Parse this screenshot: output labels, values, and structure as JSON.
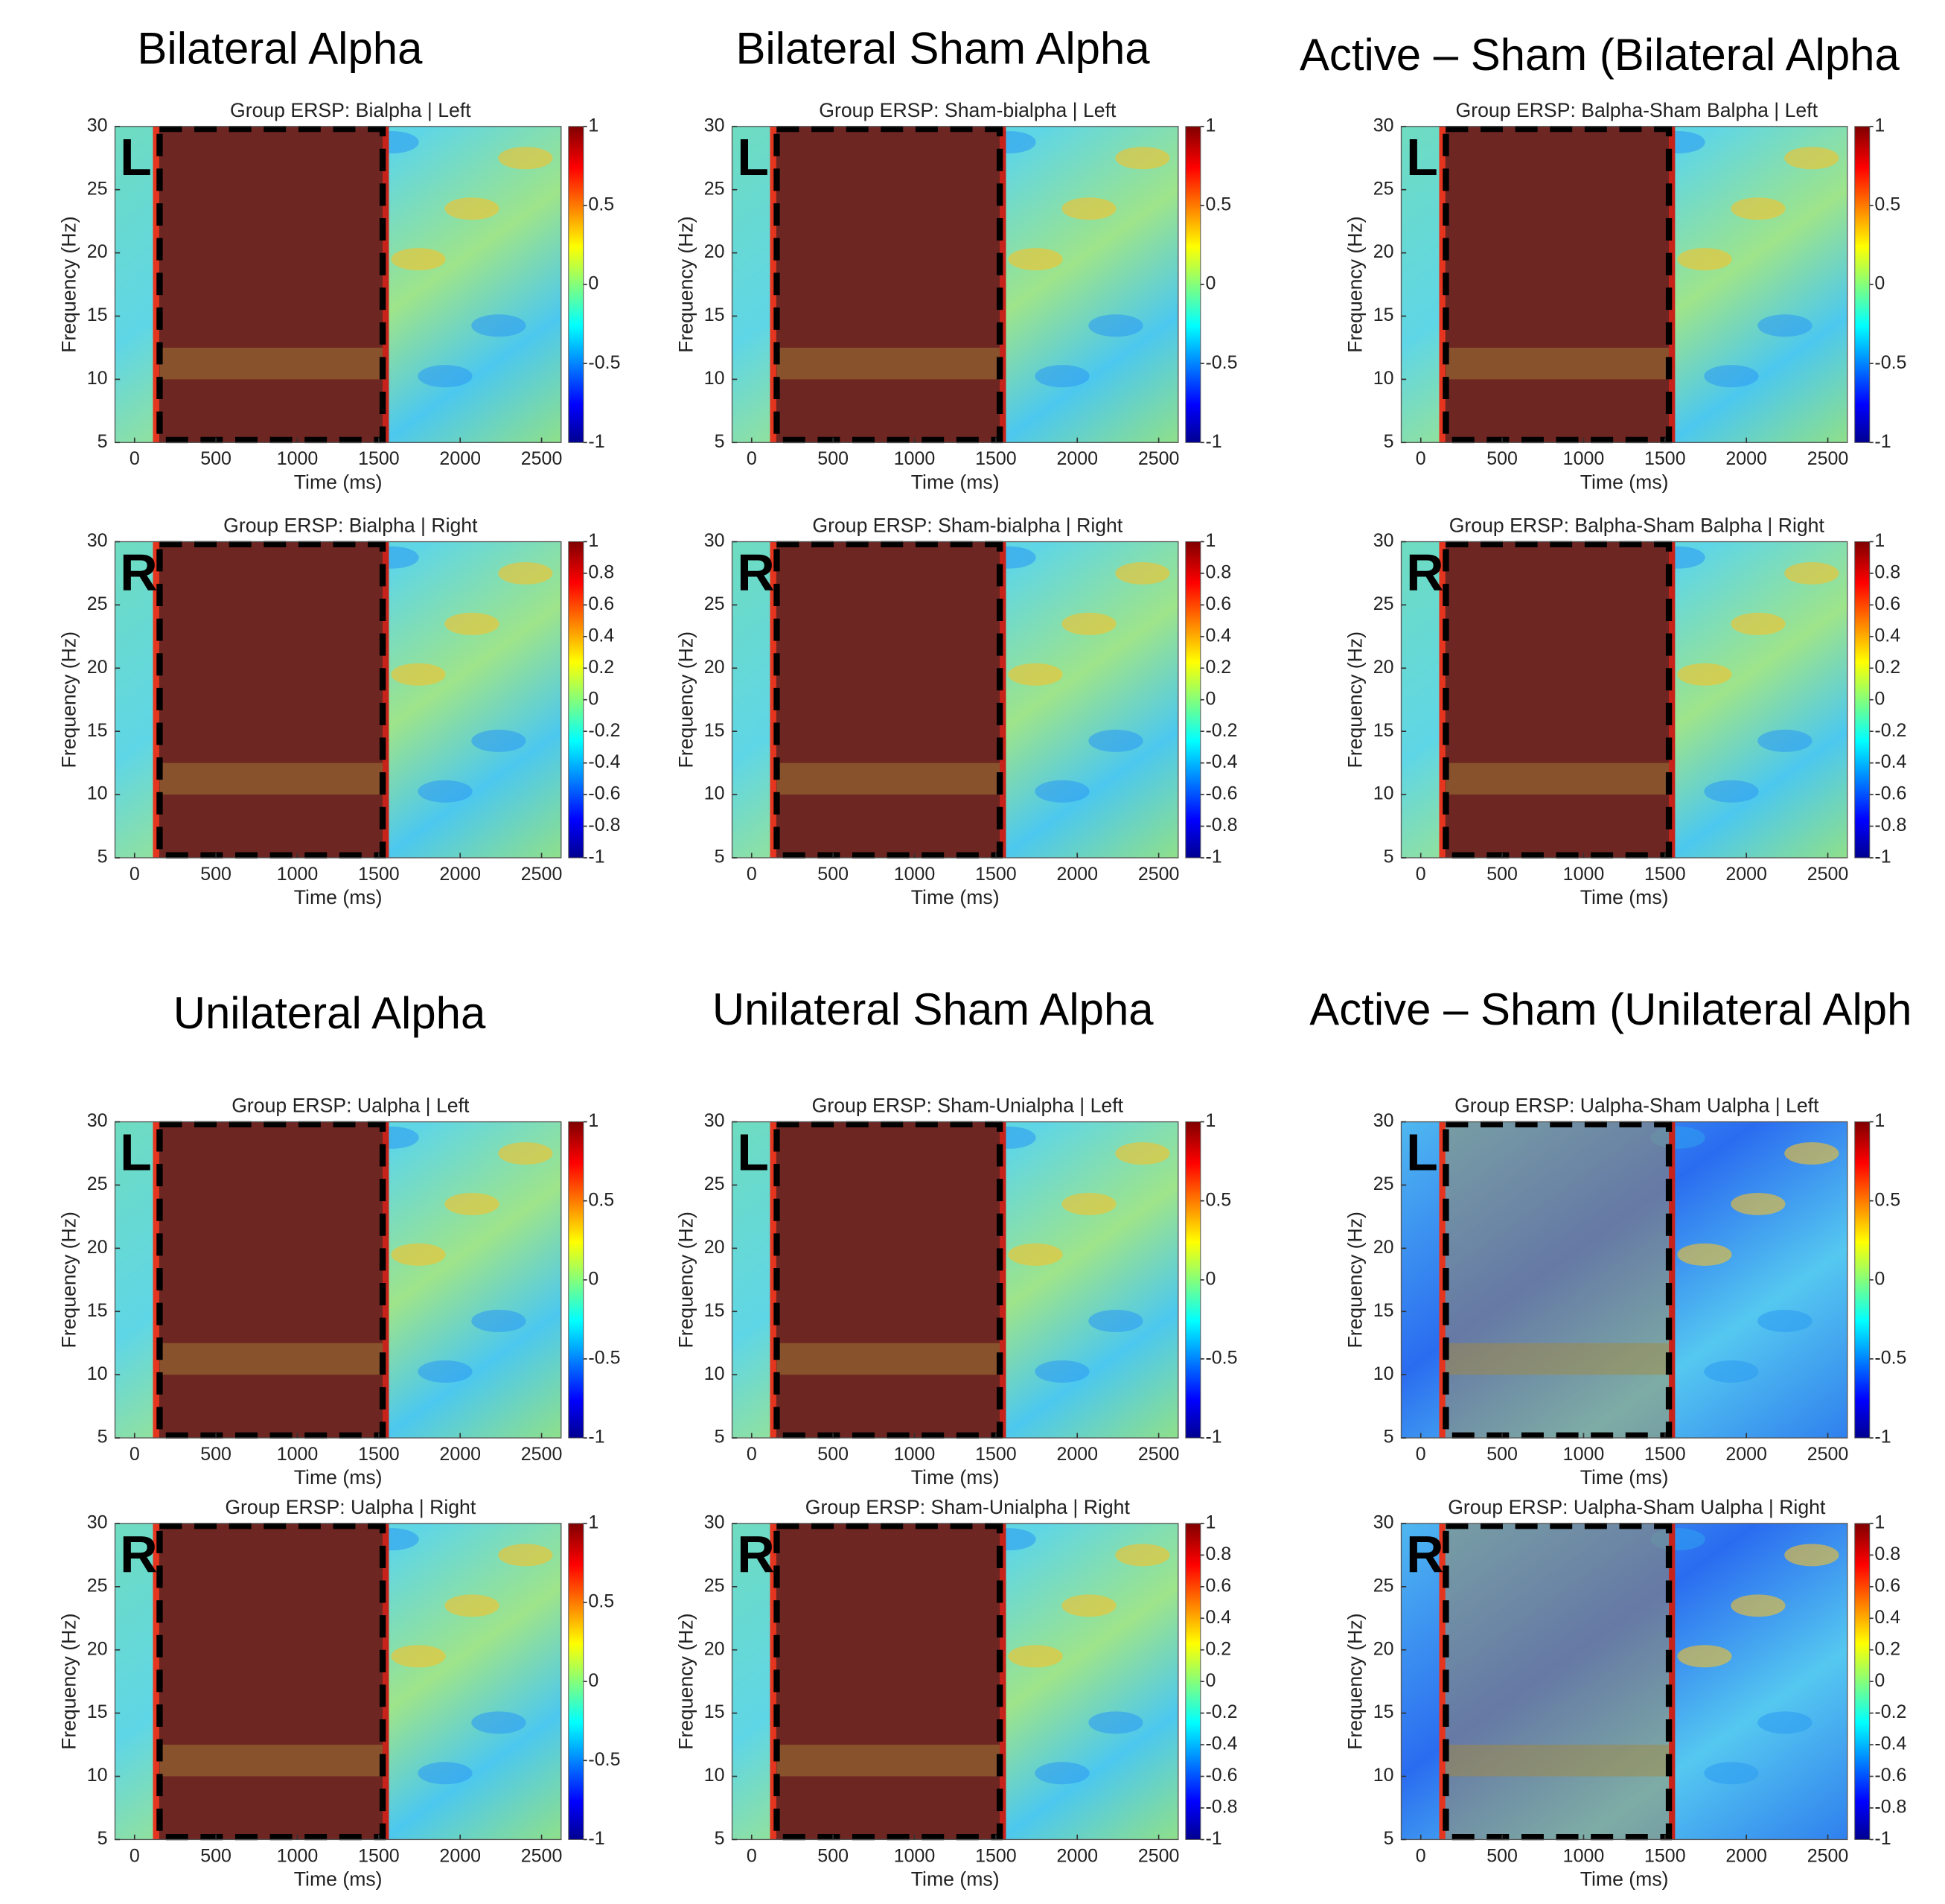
{
  "headings": [
    "Bilateral Alpha",
    "Bilateral Sham Alpha",
    "Active – Sham (Bilateral Alpha",
    "Unilateral Alpha",
    "Unilateral Sham Alpha",
    "Active – Sham (Unilateral Alph"
  ],
  "chart_data": [
    {
      "type": "heatmap",
      "title": "Group ERSP: Bialpha | Left",
      "panel_label": "L",
      "xlabel": "Time (ms)",
      "ylabel": "Frequency (Hz)",
      "xlim": [
        -120,
        2620
      ],
      "ylim": [
        5,
        30
      ],
      "xticks": [
        0,
        500,
        1000,
        1500,
        2000,
        2500
      ],
      "yticks": [
        5,
        10,
        15,
        20,
        25,
        30
      ],
      "clim": [
        -1,
        1
      ],
      "cticks": [
        -1,
        -0.5,
        0,
        0.5,
        1
      ]
    },
    {
      "type": "heatmap",
      "title": "Group ERSP: Bialpha | Right",
      "panel_label": "R",
      "xlabel": "Time (ms)",
      "ylabel": "Frequency (Hz)",
      "xlim": [
        -120,
        2620
      ],
      "ylim": [
        5,
        30
      ],
      "xticks": [
        0,
        500,
        1000,
        1500,
        2000,
        2500
      ],
      "yticks": [
        5,
        10,
        15,
        20,
        25,
        30
      ],
      "clim": [
        -1,
        1
      ],
      "cticks": [
        -1,
        -0.8,
        -0.6,
        -0.4,
        -0.2,
        0,
        0.2,
        0.4,
        0.6,
        0.8,
        1
      ]
    },
    {
      "type": "heatmap",
      "title": "Group ERSP: Sham-bialpha | Left",
      "panel_label": "L",
      "xlabel": "Time (ms)",
      "ylabel": "Frequency (Hz)",
      "xlim": [
        -120,
        2620
      ],
      "ylim": [
        5,
        30
      ],
      "xticks": [
        0,
        500,
        1000,
        1500,
        2000,
        2500
      ],
      "yticks": [
        5,
        10,
        15,
        20,
        25,
        30
      ],
      "clim": [
        -1,
        1
      ],
      "cticks": [
        -1,
        -0.5,
        0,
        0.5,
        1
      ]
    },
    {
      "type": "heatmap",
      "title": "Group ERSP: Sham-bialpha | Right",
      "panel_label": "R",
      "xlabel": "Time (ms)",
      "ylabel": "Frequency (Hz)",
      "xlim": [
        -120,
        2620
      ],
      "ylim": [
        5,
        30
      ],
      "xticks": [
        0,
        500,
        1000,
        1500,
        2000,
        2500
      ],
      "yticks": [
        5,
        10,
        15,
        20,
        25,
        30
      ],
      "clim": [
        -1,
        1
      ],
      "cticks": [
        -1,
        -0.8,
        -0.6,
        -0.4,
        -0.2,
        0,
        0.2,
        0.4,
        0.6,
        0.8,
        1
      ]
    },
    {
      "type": "heatmap",
      "title": "Group ERSP: Balpha-Sham Balpha | Left",
      "panel_label": "L",
      "xlabel": "Time (ms)",
      "ylabel": "Frequency (Hz)",
      "xlim": [
        -120,
        2620
      ],
      "ylim": [
        5,
        30
      ],
      "xticks": [
        0,
        500,
        1000,
        1500,
        2000,
        2500
      ],
      "yticks": [
        5,
        10,
        15,
        20,
        25,
        30
      ],
      "clim": [
        -1,
        1
      ],
      "cticks": [
        -1,
        -0.5,
        0,
        0.5,
        1
      ]
    },
    {
      "type": "heatmap",
      "title": "Group ERSP: Balpha-Sham Balpha | Right",
      "panel_label": "R",
      "xlabel": "Time (ms)",
      "ylabel": "Frequency (Hz)",
      "xlim": [
        -120,
        2620
      ],
      "ylim": [
        5,
        30
      ],
      "xticks": [
        0,
        500,
        1000,
        1500,
        2000,
        2500
      ],
      "yticks": [
        5,
        10,
        15,
        20,
        25,
        30
      ],
      "clim": [
        -1,
        1
      ],
      "cticks": [
        -1,
        -0.8,
        -0.6,
        -0.4,
        -0.2,
        0,
        0.2,
        0.4,
        0.6,
        0.8,
        1
      ]
    },
    {
      "type": "heatmap",
      "title": "Group ERSP: Ualpha | Left",
      "panel_label": "L",
      "xlabel": "Time (ms)",
      "ylabel": "Frequency (Hz)",
      "xlim": [
        -120,
        2620
      ],
      "ylim": [
        5,
        30
      ],
      "xticks": [
        0,
        500,
        1000,
        1500,
        2000,
        2500
      ],
      "yticks": [
        5,
        10,
        15,
        20,
        25,
        30
      ],
      "clim": [
        -1,
        1
      ],
      "cticks": [
        -1,
        -0.5,
        0,
        0.5,
        1
      ]
    },
    {
      "type": "heatmap",
      "title": "Group ERSP: Ualpha | Right",
      "panel_label": "R",
      "xlabel": "Time (ms)",
      "ylabel": "Frequency (Hz)",
      "xlim": [
        -120,
        2620
      ],
      "ylim": [
        5,
        30
      ],
      "xticks": [
        0,
        500,
        1000,
        1500,
        2000,
        2500
      ],
      "yticks": [
        5,
        10,
        15,
        20,
        25,
        30
      ],
      "clim": [
        -1,
        1
      ],
      "cticks": [
        -1,
        -0.5,
        0,
        0.5,
        1
      ]
    },
    {
      "type": "heatmap",
      "title": "Group ERSP: Sham-Unialpha | Left",
      "panel_label": "L",
      "xlabel": "Time (ms)",
      "ylabel": "Frequency (Hz)",
      "xlim": [
        -120,
        2620
      ],
      "ylim": [
        5,
        30
      ],
      "xticks": [
        0,
        500,
        1000,
        1500,
        2000,
        2500
      ],
      "yticks": [
        5,
        10,
        15,
        20,
        25,
        30
      ],
      "clim": [
        -1,
        1
      ],
      "cticks": [
        -1,
        -0.5,
        0,
        0.5,
        1
      ]
    },
    {
      "type": "heatmap",
      "title": "Group ERSP: Sham-Unialpha | Right",
      "panel_label": "R",
      "xlabel": "Time (ms)",
      "ylabel": "Frequency (Hz)",
      "xlim": [
        -120,
        2620
      ],
      "ylim": [
        5,
        30
      ],
      "xticks": [
        0,
        500,
        1000,
        1500,
        2000,
        2500
      ],
      "yticks": [
        5,
        10,
        15,
        20,
        25,
        30
      ],
      "clim": [
        -1,
        1
      ],
      "cticks": [
        -1,
        -0.8,
        -0.6,
        -0.4,
        -0.2,
        0,
        0.2,
        0.4,
        0.6,
        0.8,
        1
      ]
    },
    {
      "type": "heatmap",
      "title": "Group ERSP: Ualpha-Sham Ualpha | Left",
      "panel_label": "L",
      "xlabel": "Time (ms)",
      "ylabel": "Frequency (Hz)",
      "xlim": [
        -120,
        2620
      ],
      "ylim": [
        5,
        30
      ],
      "xticks": [
        0,
        500,
        1000,
        1500,
        2000,
        2500
      ],
      "yticks": [
        5,
        10,
        15,
        20,
        25,
        30
      ],
      "clim": [
        -1,
        1
      ],
      "cticks": [
        -1,
        -0.5,
        0,
        0.5,
        1
      ]
    },
    {
      "type": "heatmap",
      "title": "Group ERSP: Ualpha-Sham Ualpha | Right",
      "panel_label": "R",
      "xlabel": "Time (ms)",
      "ylabel": "Frequency (Hz)",
      "xlim": [
        -120,
        2620
      ],
      "ylim": [
        5,
        30
      ],
      "xticks": [
        0,
        500,
        1000,
        1500,
        2000,
        2500
      ],
      "yticks": [
        5,
        10,
        15,
        20,
        25,
        30
      ],
      "clim": [
        -1,
        1
      ],
      "cticks": [
        -1,
        -0.8,
        -0.6,
        -0.4,
        -0.2,
        0,
        0.2,
        0.4,
        0.6,
        0.8,
        1
      ]
    }
  ]
}
